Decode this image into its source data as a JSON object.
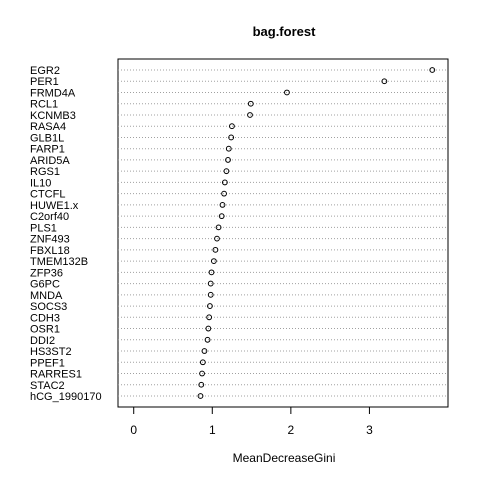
{
  "chart_data": {
    "type": "scatter",
    "title": "bag.forest",
    "xlabel": "MeanDecreaseGini",
    "ylabel": "",
    "xlim": [
      -0.2,
      4.0
    ],
    "xticks": [
      0,
      1,
      2,
      3
    ],
    "xtick_labels": [
      "0",
      "1",
      "2",
      "3"
    ],
    "grid": "dotted horizontal guide line per variable",
    "variables": [
      "EGR2",
      "PER1",
      "FRMD4A",
      "RCL1",
      "KCNMB3",
      "RASA4",
      "GLB1L",
      "FARP1",
      "ARID5A",
      "RGS1",
      "IL10",
      "CTCFL",
      "HUWE1.x",
      "C2orf40",
      "PLS1",
      "ZNF493",
      "FBXL18",
      "TMEM132B",
      "ZFP36",
      "G6PC",
      "MNDA",
      "SOCS3",
      "CDH3",
      "OSR1",
      "DDI2",
      "HS3ST2",
      "PPEF1",
      "RARRES1",
      "STAC2",
      "hCG_1990170"
    ],
    "values": [
      3.8,
      3.19,
      1.95,
      1.49,
      1.48,
      1.25,
      1.24,
      1.21,
      1.2,
      1.18,
      1.16,
      1.15,
      1.13,
      1.12,
      1.08,
      1.06,
      1.04,
      1.02,
      0.99,
      0.98,
      0.98,
      0.97,
      0.96,
      0.95,
      0.94,
      0.9,
      0.88,
      0.87,
      0.86,
      0.85
    ],
    "colors": {
      "point": "#000000",
      "guide": "#a0a0a0",
      "axis": "#000000"
    }
  }
}
